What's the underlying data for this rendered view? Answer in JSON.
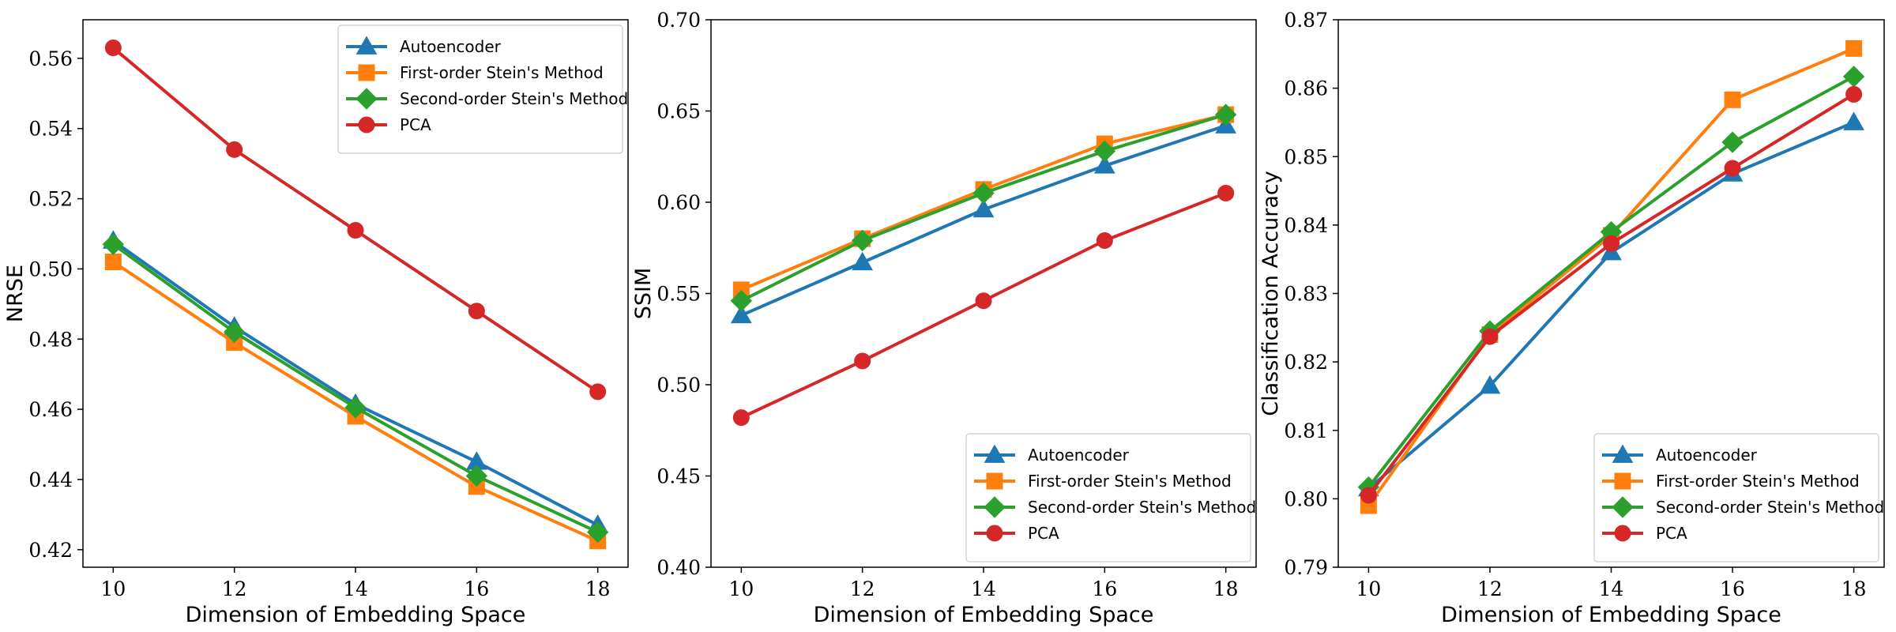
{
  "chart_data": [
    {
      "type": "line",
      "xlabel": "Dimension of Embedding Space",
      "ylabel": "NRSE",
      "x": [
        10,
        12,
        14,
        16,
        18
      ],
      "xticks": [
        10,
        12,
        14,
        16,
        18
      ],
      "xlim": [
        9.5,
        18.5
      ],
      "ylim": [
        0.415,
        0.571
      ],
      "yticks": [
        0.42,
        0.44,
        0.46,
        0.48,
        0.5,
        0.52,
        0.54,
        0.56
      ],
      "ytick_decimals": 2,
      "legend_position": "upper-right",
      "series": [
        {
          "name": "Autoencoder",
          "color": "#1f77b4",
          "marker": "triangle",
          "values": [
            0.508,
            0.4835,
            0.4615,
            0.445,
            0.427
          ]
        },
        {
          "name": "First-order Stein's Method",
          "color": "#ff7f0e",
          "marker": "square",
          "values": [
            0.502,
            0.479,
            0.458,
            0.438,
            0.4225
          ]
        },
        {
          "name": "Second-order Stein's Method",
          "color": "#2ca02c",
          "marker": "diamond",
          "values": [
            0.507,
            0.482,
            0.4605,
            0.441,
            0.425
          ]
        },
        {
          "name": "PCA",
          "color": "#d62728",
          "marker": "circle",
          "values": [
            0.563,
            0.534,
            0.511,
            0.488,
            0.465
          ]
        }
      ]
    },
    {
      "type": "line",
      "xlabel": "Dimension of Embedding Space",
      "ylabel": "SSIM",
      "x": [
        10,
        12,
        14,
        16,
        18
      ],
      "xticks": [
        10,
        12,
        14,
        16,
        18
      ],
      "xlim": [
        9.5,
        18.5
      ],
      "ylim": [
        0.4,
        0.7
      ],
      "yticks": [
        0.4,
        0.45,
        0.5,
        0.55,
        0.6,
        0.65,
        0.7
      ],
      "ytick_decimals": 2,
      "legend_position": "lower-right",
      "series": [
        {
          "name": "Autoencoder",
          "color": "#1f77b4",
          "marker": "triangle",
          "values": [
            0.538,
            0.567,
            0.596,
            0.62,
            0.642
          ]
        },
        {
          "name": "First-order Stein's Method",
          "color": "#ff7f0e",
          "marker": "square",
          "values": [
            0.552,
            0.58,
            0.607,
            0.632,
            0.648
          ]
        },
        {
          "name": "Second-order Stein's Method",
          "color": "#2ca02c",
          "marker": "diamond",
          "values": [
            0.546,
            0.579,
            0.605,
            0.628,
            0.648
          ]
        },
        {
          "name": "PCA",
          "color": "#d62728",
          "marker": "circle",
          "values": [
            0.482,
            0.513,
            0.546,
            0.579,
            0.605
          ]
        }
      ]
    },
    {
      "type": "line",
      "xlabel": "Dimension of Embedding Space",
      "ylabel": "Classification Accuracy",
      "x": [
        10,
        12,
        14,
        16,
        18
      ],
      "xticks": [
        10,
        12,
        14,
        16,
        18
      ],
      "xlim": [
        9.5,
        18.5
      ],
      "ylim": [
        0.79,
        0.87
      ],
      "yticks": [
        0.79,
        0.8,
        0.81,
        0.82,
        0.83,
        0.84,
        0.85,
        0.86,
        0.87
      ],
      "ytick_decimals": 2,
      "legend_position": "lower-right",
      "series": [
        {
          "name": "Autoencoder",
          "color": "#1f77b4",
          "marker": "triangle",
          "values": [
            0.8015,
            0.8165,
            0.836,
            0.8475,
            0.855
          ]
        },
        {
          "name": "First-order Stein's Method",
          "color": "#ff7f0e",
          "marker": "square",
          "values": [
            0.799,
            0.824,
            0.8385,
            0.8583,
            0.8658
          ]
        },
        {
          "name": "Second-order Stein's Method",
          "color": "#2ca02c",
          "marker": "diamond",
          "values": [
            0.8017,
            0.8245,
            0.839,
            0.8521,
            0.8617
          ]
        },
        {
          "name": "PCA",
          "color": "#d62728",
          "marker": "circle",
          "values": [
            0.8005,
            0.8237,
            0.8373,
            0.8483,
            0.8591
          ]
        }
      ]
    }
  ]
}
